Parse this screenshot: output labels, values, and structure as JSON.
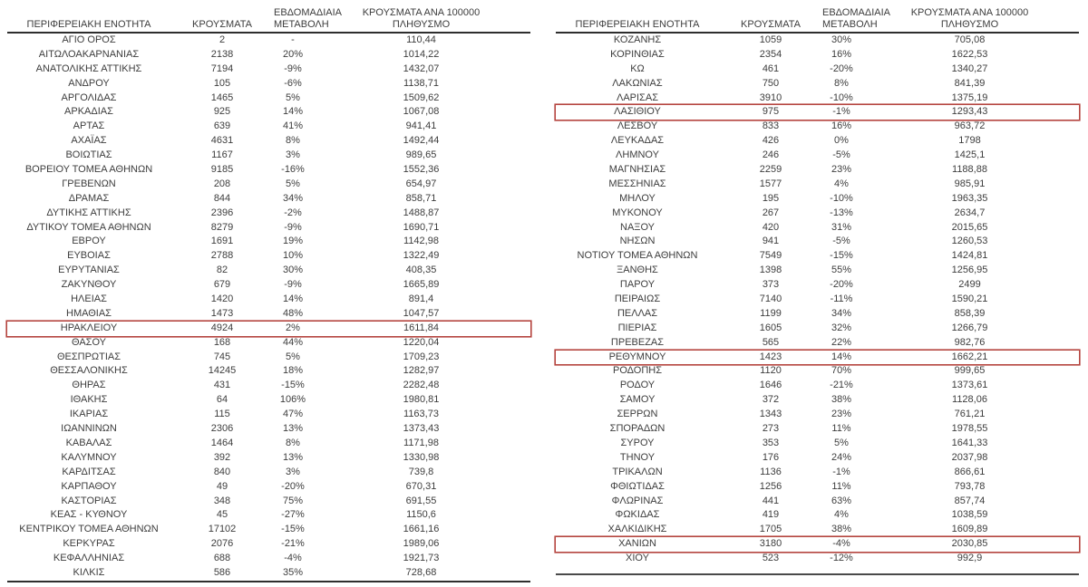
{
  "colors": {
    "highlight_border": "#b5443e",
    "text": "#3d3d3d",
    "rule": "#2e2e2e"
  },
  "headers": {
    "region": "ΠΕΡΙΦΕΡΕΙΑΚΗ ΕΝΟΤΗΤΑ",
    "cases": "ΚΡΟΥΣΜΑΤΑ",
    "weekly_line1": "ΕΒΔΟΜΑΔΙΑΙΑ",
    "weekly_line2": "ΜΕΤΑΒΟΛΗ",
    "per100k_line1": "ΚΡΟΥΣΜΑΤΑ ΑΝΑ 100000",
    "per100k_line2": "ΠΛΗΘΥΣΜΟ"
  },
  "left_table": {
    "rows": [
      {
        "region": "ΑΓΙΟ ΟΡΟΣ",
        "cases": "2",
        "change": "-",
        "per100k": "110,44"
      },
      {
        "region": "ΑΙΤΩΛΟΑΚΑΡΝΑΝΙΑΣ",
        "cases": "2138",
        "change": "20%",
        "per100k": "1014,22"
      },
      {
        "region": "ΑΝΑΤΟΛΙΚΗΣ ΑΤΤΙΚΗΣ",
        "cases": "7194",
        "change": "-9%",
        "per100k": "1432,07"
      },
      {
        "region": "ΑΝΔΡΟΥ",
        "cases": "105",
        "change": "-6%",
        "per100k": "1138,71"
      },
      {
        "region": "ΑΡΓΟΛΙΔΑΣ",
        "cases": "1465",
        "change": "5%",
        "per100k": "1509,62"
      },
      {
        "region": "ΑΡΚΑΔΙΑΣ",
        "cases": "925",
        "change": "14%",
        "per100k": "1067,08"
      },
      {
        "region": "ΑΡΤΑΣ",
        "cases": "639",
        "change": "41%",
        "per100k": "941,41"
      },
      {
        "region": "ΑΧΑΪΑΣ",
        "cases": "4631",
        "change": "8%",
        "per100k": "1492,44"
      },
      {
        "region": "ΒΟΙΩΤΙΑΣ",
        "cases": "1167",
        "change": "3%",
        "per100k": "989,65"
      },
      {
        "region": "ΒΟΡΕΙΟΥ ΤΟΜΕΑ ΑΘΗΝΩΝ",
        "cases": "9185",
        "change": "-16%",
        "per100k": "1552,36"
      },
      {
        "region": "ΓΡΕΒΕΝΩΝ",
        "cases": "208",
        "change": "5%",
        "per100k": "654,97"
      },
      {
        "region": "ΔΡΑΜΑΣ",
        "cases": "844",
        "change": "34%",
        "per100k": "858,71"
      },
      {
        "region": "ΔΥΤΙΚΗΣ ΑΤΤΙΚΗΣ",
        "cases": "2396",
        "change": "-2%",
        "per100k": "1488,87"
      },
      {
        "region": "ΔΥΤΙΚΟΥ ΤΟΜΕΑ ΑΘΗΝΩΝ",
        "cases": "8279",
        "change": "-9%",
        "per100k": "1690,71"
      },
      {
        "region": "ΕΒΡΟΥ",
        "cases": "1691",
        "change": "19%",
        "per100k": "1142,98"
      },
      {
        "region": "ΕΥΒΟΙΑΣ",
        "cases": "2788",
        "change": "10%",
        "per100k": "1322,49"
      },
      {
        "region": "ΕΥΡΥΤΑΝΙΑΣ",
        "cases": "82",
        "change": "30%",
        "per100k": "408,35"
      },
      {
        "region": "ΖΑΚΥΝΘΟΥ",
        "cases": "679",
        "change": "-9%",
        "per100k": "1665,89"
      },
      {
        "region": "ΗΛΕΙΑΣ",
        "cases": "1420",
        "change": "14%",
        "per100k": "891,4"
      },
      {
        "region": "ΗΜΑΘΙΑΣ",
        "cases": "1473",
        "change": "48%",
        "per100k": "1047,57"
      },
      {
        "region": "ΗΡΑΚΛΕΙΟΥ",
        "cases": "4924",
        "change": "2%",
        "per100k": "1611,84",
        "highlight": true
      },
      {
        "region": "ΘΑΣΟΥ",
        "cases": "168",
        "change": "44%",
        "per100k": "1220,04"
      },
      {
        "region": "ΘΕΣΠΡΩΤΙΑΣ",
        "cases": "745",
        "change": "5%",
        "per100k": "1709,23"
      },
      {
        "region": "ΘΕΣΣΑΛΟΝΙΚΗΣ",
        "cases": "14245",
        "change": "18%",
        "per100k": "1282,97"
      },
      {
        "region": "ΘΗΡΑΣ",
        "cases": "431",
        "change": "-15%",
        "per100k": "2282,48"
      },
      {
        "region": "ΙΘΑΚΗΣ",
        "cases": "64",
        "change": "106%",
        "per100k": "1980,81"
      },
      {
        "region": "ΙΚΑΡΙΑΣ",
        "cases": "115",
        "change": "47%",
        "per100k": "1163,73"
      },
      {
        "region": "ΙΩΑΝΝΙΝΩΝ",
        "cases": "2306",
        "change": "13%",
        "per100k": "1373,43"
      },
      {
        "region": "ΚΑΒΑΛΑΣ",
        "cases": "1464",
        "change": "8%",
        "per100k": "1171,98"
      },
      {
        "region": "ΚΑΛΥΜΝΟΥ",
        "cases": "392",
        "change": "13%",
        "per100k": "1330,98"
      },
      {
        "region": "ΚΑΡΔΙΤΣΑΣ",
        "cases": "840",
        "change": "3%",
        "per100k": "739,8"
      },
      {
        "region": "ΚΑΡΠΑΘΟΥ",
        "cases": "49",
        "change": "-20%",
        "per100k": "670,31"
      },
      {
        "region": "ΚΑΣΤΟΡΙΑΣ",
        "cases": "348",
        "change": "75%",
        "per100k": "691,55"
      },
      {
        "region": "ΚΕΑΣ - ΚΥΘΝΟΥ",
        "cases": "45",
        "change": "-27%",
        "per100k": "1150,6"
      },
      {
        "region": "ΚΕΝΤΡΙΚΟΥ ΤΟΜΕΑ ΑΘΗΝΩΝ",
        "cases": "17102",
        "change": "-15%",
        "per100k": "1661,16"
      },
      {
        "region": "ΚΕΡΚΥΡΑΣ",
        "cases": "2076",
        "change": "-21%",
        "per100k": "1989,06"
      },
      {
        "region": "ΚΕΦΑΛΛΗΝΙΑΣ",
        "cases": "688",
        "change": "-4%",
        "per100k": "1921,73"
      },
      {
        "region": "ΚΙΛΚΙΣ",
        "cases": "586",
        "change": "35%",
        "per100k": "728,68"
      }
    ]
  },
  "right_table": {
    "rows": [
      {
        "region": "ΚΟΖΑΝΗΣ",
        "cases": "1059",
        "change": "30%",
        "per100k": "705,08"
      },
      {
        "region": "ΚΟΡΙΝΘΙΑΣ",
        "cases": "2354",
        "change": "16%",
        "per100k": "1622,53"
      },
      {
        "region": "ΚΩ",
        "cases": "461",
        "change": "-20%",
        "per100k": "1340,27"
      },
      {
        "region": "ΛΑΚΩΝΙΑΣ",
        "cases": "750",
        "change": "8%",
        "per100k": "841,39"
      },
      {
        "region": "ΛΑΡΙΣΑΣ",
        "cases": "3910",
        "change": "-10%",
        "per100k": "1375,19"
      },
      {
        "region": "ΛΑΣΙΘΙΟΥ",
        "cases": "975",
        "change": "-1%",
        "per100k": "1293,43",
        "highlight": true
      },
      {
        "region": "ΛΕΣΒΟΥ",
        "cases": "833",
        "change": "16%",
        "per100k": "963,72"
      },
      {
        "region": "ΛΕΥΚΑΔΑΣ",
        "cases": "426",
        "change": "0%",
        "per100k": "1798"
      },
      {
        "region": "ΛΗΜΝΟΥ",
        "cases": "246",
        "change": "-5%",
        "per100k": "1425,1"
      },
      {
        "region": "ΜΑΓΝΗΣΙΑΣ",
        "cases": "2259",
        "change": "23%",
        "per100k": "1188,88"
      },
      {
        "region": "ΜΕΣΣΗΝΙΑΣ",
        "cases": "1577",
        "change": "4%",
        "per100k": "985,91"
      },
      {
        "region": "ΜΗΛΟΥ",
        "cases": "195",
        "change": "-10%",
        "per100k": "1963,35"
      },
      {
        "region": "ΜΥΚΟΝΟΥ",
        "cases": "267",
        "change": "-13%",
        "per100k": "2634,7"
      },
      {
        "region": "ΝΑΞΟΥ",
        "cases": "420",
        "change": "31%",
        "per100k": "2015,65"
      },
      {
        "region": "ΝΗΣΩΝ",
        "cases": "941",
        "change": "-5%",
        "per100k": "1260,53"
      },
      {
        "region": "ΝΟΤΙΟΥ ΤΟΜΕΑ ΑΘΗΝΩΝ",
        "cases": "7549",
        "change": "-15%",
        "per100k": "1424,81"
      },
      {
        "region": "ΞΑΝΘΗΣ",
        "cases": "1398",
        "change": "55%",
        "per100k": "1256,95"
      },
      {
        "region": "ΠΑΡΟΥ",
        "cases": "373",
        "change": "-20%",
        "per100k": "2499"
      },
      {
        "region": "ΠΕΙΡΑΙΩΣ",
        "cases": "7140",
        "change": "-11%",
        "per100k": "1590,21"
      },
      {
        "region": "ΠΕΛΛΑΣ",
        "cases": "1199",
        "change": "34%",
        "per100k": "858,39"
      },
      {
        "region": "ΠΙΕΡΙΑΣ",
        "cases": "1605",
        "change": "32%",
        "per100k": "1266,79"
      },
      {
        "region": "ΠΡΕΒΕΖΑΣ",
        "cases": "565",
        "change": "22%",
        "per100k": "982,76"
      },
      {
        "region": "ΡΕΘΥΜΝΟΥ",
        "cases": "1423",
        "change": "14%",
        "per100k": "1662,21",
        "highlight": true
      },
      {
        "region": "ΡΟΔΟΠΗΣ",
        "cases": "1120",
        "change": "70%",
        "per100k": "999,65"
      },
      {
        "region": "ΡΟΔΟΥ",
        "cases": "1646",
        "change": "-21%",
        "per100k": "1373,61"
      },
      {
        "region": "ΣΑΜΟΥ",
        "cases": "372",
        "change": "38%",
        "per100k": "1128,06"
      },
      {
        "region": "ΣΕΡΡΩΝ",
        "cases": "1343",
        "change": "23%",
        "per100k": "761,21"
      },
      {
        "region": "ΣΠΟΡΑΔΩΝ",
        "cases": "273",
        "change": "11%",
        "per100k": "1978,55"
      },
      {
        "region": "ΣΥΡΟΥ",
        "cases": "353",
        "change": "5%",
        "per100k": "1641,33"
      },
      {
        "region": "ΤΗΝΟΥ",
        "cases": "176",
        "change": "24%",
        "per100k": "2037,98"
      },
      {
        "region": "ΤΡΙΚΑΛΩΝ",
        "cases": "1136",
        "change": "-1%",
        "per100k": "866,61"
      },
      {
        "region": "ΦΘΙΩΤΙΔΑΣ",
        "cases": "1256",
        "change": "11%",
        "per100k": "793,78"
      },
      {
        "region": "ΦΛΩΡΙΝΑΣ",
        "cases": "441",
        "change": "63%",
        "per100k": "857,74"
      },
      {
        "region": "ΦΩΚΙΔΑΣ",
        "cases": "419",
        "change": "4%",
        "per100k": "1038,59"
      },
      {
        "region": "ΧΑΛΚΙΔΙΚΗΣ",
        "cases": "1705",
        "change": "38%",
        "per100k": "1609,89"
      },
      {
        "region": "ΧΑΝΙΩΝ",
        "cases": "3180",
        "change": "-4%",
        "per100k": "2030,85",
        "highlight": true
      },
      {
        "region": "ΧΙΟΥ",
        "cases": "523",
        "change": "-12%",
        "per100k": "992,9"
      }
    ]
  }
}
